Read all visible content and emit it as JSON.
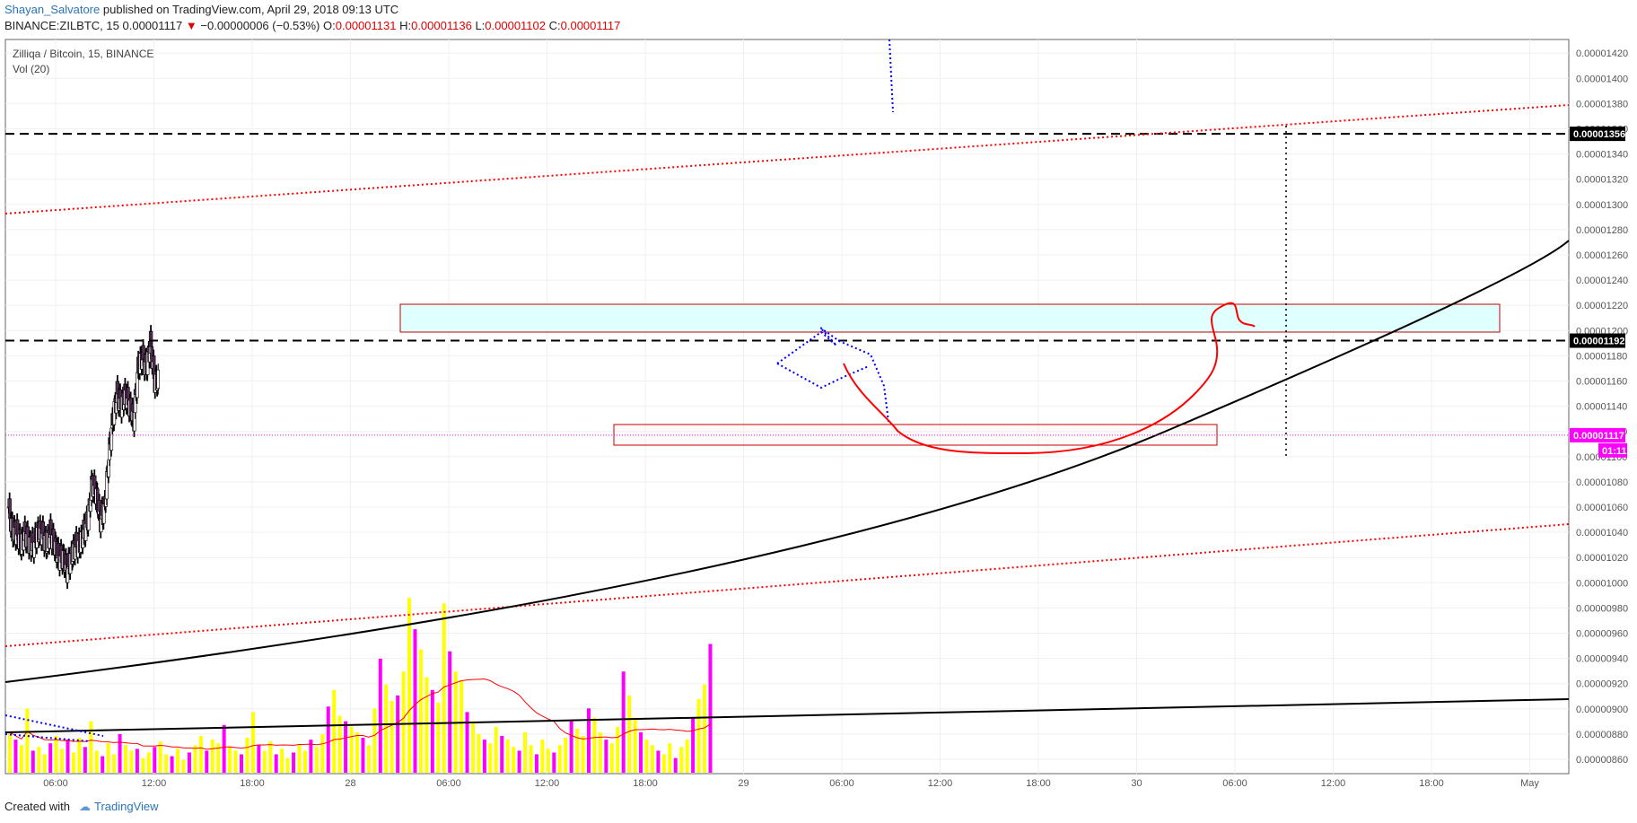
{
  "header": {
    "author": "Shayan_Salvatore",
    "published": "published on TradingView.com, April 29, 2018 09:13 UTC"
  },
  "ohlc_line": {
    "symbol": "BINANCE:ZILBTC, 15",
    "last": "0.00001117",
    "change": "−0.00000006 (−0.53%)",
    "o_label": "O:",
    "o": "0.00001131",
    "h_label": "H:",
    "h": "0.00001136",
    "l_label": "L:",
    "l": "0.00001102",
    "c_label": "C:",
    "c": "0.00001117"
  },
  "legend": {
    "title": "Zilliqa / Bitcoin, 15, BINANCE",
    "vol": "Vol (20)"
  },
  "footer": {
    "created": "Created with",
    "brand": "TradingView"
  },
  "colors": {
    "up_volume": "#ffff00",
    "down_volume": "#ff00ff",
    "last_price": "#ff00ff",
    "box_fill": "#e0ffff",
    "box_border": "#c00000",
    "trend_red": "#ff0000",
    "dotted_blue": "#0000ff"
  },
  "chart_data": {
    "type": "candlestick",
    "symbol": "Zilliqa / Bitcoin, 15, BINANCE",
    "y_range": [
      8.5e-06,
      1.425e-05
    ],
    "y_ticks": [
      "0.00000860",
      "0.00000880",
      "0.00000900",
      "0.00000920",
      "0.00000940",
      "0.00000960",
      "0.00000980",
      "0.00001000",
      "0.00001020",
      "0.00001040",
      "0.00001060",
      "0.00001080",
      "0.00001100",
      "0.00001120",
      "0.00001140",
      "0.00001160",
      "0.00001180",
      "0.00001200",
      "0.00001220",
      "0.00001240",
      "0.00001260",
      "0.00001280",
      "0.00001300",
      "0.00001320",
      "0.00001340",
      "0.00001360",
      "0.00001380",
      "0.00001400",
      "0.00001420"
    ],
    "x_ticks": [
      "06:00",
      "12:00",
      "18:00",
      "28",
      "06:00",
      "12:00",
      "18:00",
      "29",
      "06:00",
      "12:00",
      "18:00",
      "30",
      "06:00",
      "12:00",
      "18:00",
      "May"
    ],
    "price_labels": [
      {
        "text": "0.00001356",
        "value": 1.356e-05,
        "style": "black"
      },
      {
        "text": "0.00001192",
        "value": 1.192e-05,
        "style": "black"
      },
      {
        "text": "0.00001117",
        "value": 1.117e-05,
        "style": "magenta"
      },
      {
        "text": "01:11",
        "value": 1.105e-05,
        "style": "magenta"
      }
    ],
    "horizontal_levels": [
      1.356e-05,
      1.192e-05
    ],
    "close_path": [
      [
        0,
        1.06e-05
      ],
      [
        6,
        1.04e-05
      ],
      [
        12,
        1.04e-05
      ],
      [
        18,
        1.03e-05
      ],
      [
        24,
        1.04e-05
      ],
      [
        30,
        1.03e-05
      ],
      [
        36,
        1.03e-05
      ],
      [
        42,
        1.04e-05
      ],
      [
        48,
        1.04e-05
      ],
      [
        54,
        1.03e-05
      ],
      [
        60,
        1.04e-05
      ],
      [
        66,
        1.03e-05
      ],
      [
        72,
        1.02e-05
      ],
      [
        78,
        1.02e-05
      ],
      [
        84,
        1.01e-05
      ],
      [
        90,
        1.02e-05
      ],
      [
        96,
        1.03e-05
      ],
      [
        102,
        1.03e-05
      ],
      [
        108,
        1.04e-05
      ],
      [
        114,
        1.05e-05
      ],
      [
        120,
        1.08e-05
      ],
      [
        126,
        1.07e-05
      ],
      [
        132,
        1.05e-05
      ],
      [
        138,
        1.06e-05
      ],
      [
        144,
        1.1e-05
      ],
      [
        150,
        1.13e-05
      ],
      [
        156,
        1.15e-05
      ],
      [
        162,
        1.14e-05
      ],
      [
        168,
        1.15e-05
      ],
      [
        174,
        1.14e-05
      ],
      [
        180,
        1.13e-05
      ],
      [
        186,
        1.17e-05
      ],
      [
        192,
        1.18e-05
      ],
      [
        198,
        1.17e-05
      ],
      [
        204,
        1.19e-05
      ],
      [
        210,
        1.16e-05
      ]
    ],
    "volume_max": 1.0,
    "volume": [
      0.22,
      0.18,
      0.15,
      0.35,
      0.12,
      0.14,
      0.1,
      0.16,
      0.2,
      0.13,
      0.18,
      0.11,
      0.19,
      0.14,
      0.28,
      0.12,
      0.09,
      0.16,
      0.1,
      0.21,
      0.15,
      0.12,
      0.13,
      0.08,
      0.11,
      0.14,
      0.17,
      0.1,
      0.09,
      0.13,
      0.07,
      0.11,
      0.15,
      0.2,
      0.12,
      0.18,
      0.16,
      0.26,
      0.14,
      0.12,
      0.1,
      0.19,
      0.33,
      0.15,
      0.12,
      0.17,
      0.1,
      0.13,
      0.08,
      0.11,
      0.15,
      0.12,
      0.18,
      0.14,
      0.21,
      0.36,
      0.45,
      0.31,
      0.28,
      0.25,
      0.22,
      0.19,
      0.15,
      0.35,
      0.62,
      0.48,
      0.39,
      0.42,
      0.55,
      0.95,
      0.78,
      0.67,
      0.52,
      0.45,
      0.38,
      0.92,
      0.66,
      0.55,
      0.5,
      0.33,
      0.28,
      0.21,
      0.18,
      0.16,
      0.25,
      0.2,
      0.18,
      0.14,
      0.12,
      0.22,
      0.15,
      0.1,
      0.18,
      0.13,
      0.11,
      0.15,
      0.19,
      0.28,
      0.24,
      0.2,
      0.35,
      0.3,
      0.22,
      0.18,
      0.16,
      0.25,
      0.55,
      0.42,
      0.3,
      0.22,
      0.18,
      0.15,
      0.12,
      0.1,
      0.16,
      0.08,
      0.14,
      0.18,
      0.3,
      0.4,
      0.48,
      0.7
    ]
  }
}
